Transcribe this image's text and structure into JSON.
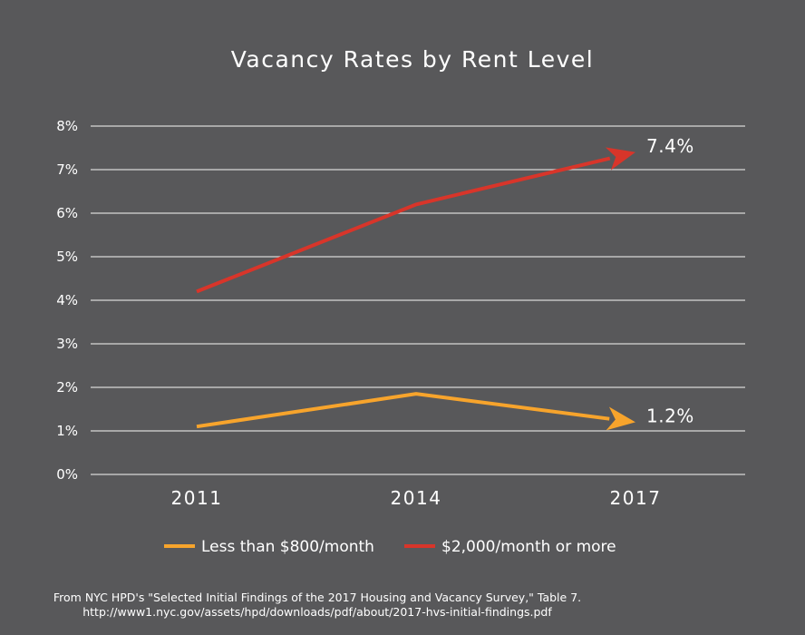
{
  "chart_data": {
    "type": "line",
    "title": "Vacancy Rates by Rent Level",
    "categories": [
      "2011",
      "2014",
      "2017"
    ],
    "y_ticks": [
      "0%",
      "1%",
      "2%",
      "3%",
      "4%",
      "5%",
      "6%",
      "7%",
      "8%"
    ],
    "ylim": [
      0,
      8
    ],
    "y_unit": "%",
    "grid": true,
    "legend_position": "bottom",
    "series": [
      {
        "name": "Less than $800/month",
        "values": [
          1.1,
          1.85,
          1.2
        ],
        "end_label": "1.2%",
        "color": "#f7a42c"
      },
      {
        "name": "$2,000/month or more",
        "values": [
          4.2,
          6.2,
          7.4
        ],
        "end_label": "7.4%",
        "color": "#d8352a"
      }
    ]
  },
  "source": {
    "line1": "From NYC HPD's \"Selected Initial Findings of the 2017 Housing and Vacancy Survey,\" Table 7.",
    "line2": "http://www1.nyc.gov/assets/hpd/downloads/pdf/about/2017-hvs-initial-findings.pdf"
  },
  "colors": {
    "background": "#58585a",
    "gridline": "#d8d8d8",
    "text": "#ffffff"
  }
}
